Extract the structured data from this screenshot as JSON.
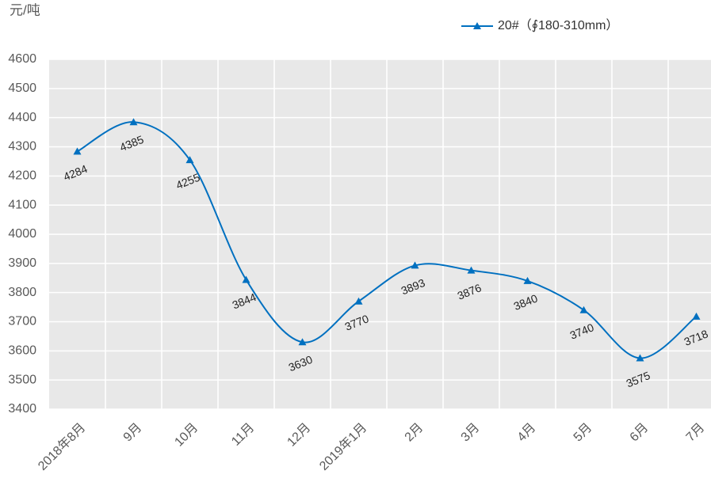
{
  "chart_data": {
    "type": "line",
    "y_label": "元/吨",
    "categories": [
      "2018年8月",
      "9月",
      "10月",
      "11月",
      "12月",
      "2019年1月",
      "2月",
      "3月",
      "4月",
      "5月",
      "6月",
      "7月"
    ],
    "series": [
      {
        "name": "20#（∮180-310mm）",
        "color": "#0070c0",
        "values": [
          4284,
          4385,
          4255,
          3844,
          3630,
          3770,
          3893,
          3876,
          3840,
          3740,
          3575,
          3718
        ]
      }
    ],
    "ylim": [
      3400,
      4600
    ],
    "yticks": [
      3400,
      3500,
      3600,
      3700,
      3800,
      3900,
      4000,
      4100,
      4200,
      4300,
      4400,
      4500,
      4600
    ],
    "grid": true,
    "smooth": true,
    "legend": "top-right"
  }
}
